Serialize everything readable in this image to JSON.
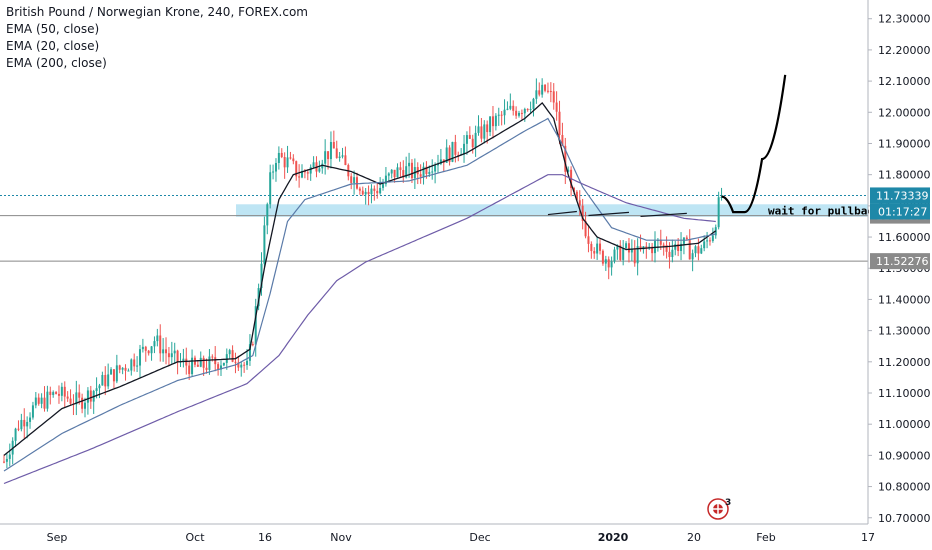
{
  "legend": {
    "title": "British Pound / Norwegian Krone, 240, FOREX.com",
    "indicators": [
      "EMA (50, close)",
      "EMA (20, close)",
      "EMA (200, close)"
    ]
  },
  "chart_data": {
    "type": "candlestick",
    "ylim": [
      10.68,
      12.36
    ],
    "y_ticks": [
      "12.30000",
      "12.20000",
      "12.10000",
      "12.00000",
      "11.90000",
      "11.80000",
      "11.70000",
      "11.60000",
      "11.50000",
      "11.40000",
      "11.30000",
      "11.20000",
      "11.10000",
      "11.00000",
      "10.90000",
      "10.80000",
      "10.70000"
    ],
    "x_ticks": [
      "Sep",
      "Oct",
      "16",
      "Nov",
      "Dec",
      "2020",
      "20",
      "Feb",
      "17"
    ],
    "bold_x_tick": "2020",
    "price_path": [
      [
        0,
        10.88
      ],
      [
        5,
        11.0
      ],
      [
        10,
        11.05
      ],
      [
        18,
        11.1
      ],
      [
        26,
        11.07
      ],
      [
        36,
        11.15
      ],
      [
        44,
        11.2
      ],
      [
        52,
        11.27
      ],
      [
        58,
        11.21
      ],
      [
        66,
        11.18
      ],
      [
        74,
        11.2
      ],
      [
        80,
        11.22
      ],
      [
        84,
        11.18
      ],
      [
        86,
        11.28
      ],
      [
        88,
        11.45
      ],
      [
        90,
        11.62
      ],
      [
        92,
        11.78
      ],
      [
        94,
        11.86
      ],
      [
        98,
        11.84
      ],
      [
        102,
        11.8
      ],
      [
        106,
        11.82
      ],
      [
        110,
        11.86
      ],
      [
        114,
        11.88
      ],
      [
        118,
        11.82
      ],
      [
        122,
        11.78
      ],
      [
        126,
        11.74
      ],
      [
        130,
        11.76
      ],
      [
        134,
        11.8
      ],
      [
        138,
        11.82
      ],
      [
        142,
        11.8
      ],
      [
        148,
        11.84
      ],
      [
        156,
        11.88
      ],
      [
        162,
        11.91
      ],
      [
        168,
        11.96
      ],
      [
        174,
        12.0
      ],
      [
        180,
        12.02
      ],
      [
        184,
        12.05
      ],
      [
        187,
        12.07
      ],
      [
        190,
        12.04
      ],
      [
        193,
        11.88
      ],
      [
        196,
        11.74
      ],
      [
        199,
        11.68
      ],
      [
        202,
        11.6
      ],
      [
        206,
        11.54
      ],
      [
        210,
        11.53
      ],
      [
        214,
        11.56
      ],
      [
        218,
        11.54
      ],
      [
        222,
        11.56
      ],
      [
        226,
        11.58
      ],
      [
        230,
        11.56
      ],
      [
        234,
        11.58
      ],
      [
        238,
        11.55
      ],
      [
        242,
        11.57
      ],
      [
        245,
        11.62
      ],
      [
        247,
        11.7
      ],
      [
        248,
        11.73
      ]
    ],
    "series": [
      {
        "name": "EMA (20, close)",
        "color": "#131722",
        "points": [
          [
            0,
            10.9
          ],
          [
            20,
            11.05
          ],
          [
            40,
            11.12
          ],
          [
            60,
            11.2
          ],
          [
            80,
            11.21
          ],
          [
            85,
            11.24
          ],
          [
            90,
            11.5
          ],
          [
            95,
            11.72
          ],
          [
            100,
            11.8
          ],
          [
            110,
            11.83
          ],
          [
            120,
            11.81
          ],
          [
            130,
            11.77
          ],
          [
            140,
            11.8
          ],
          [
            160,
            11.87
          ],
          [
            180,
            11.98
          ],
          [
            186,
            12.03
          ],
          [
            190,
            11.98
          ],
          [
            195,
            11.8
          ],
          [
            200,
            11.66
          ],
          [
            205,
            11.6
          ],
          [
            215,
            11.56
          ],
          [
            230,
            11.57
          ],
          [
            240,
            11.58
          ],
          [
            246,
            11.62
          ]
        ]
      },
      {
        "name": "EMA (50, close)",
        "color": "#5a7aa8",
        "points": [
          [
            0,
            10.85
          ],
          [
            20,
            10.97
          ],
          [
            40,
            11.06
          ],
          [
            60,
            11.14
          ],
          [
            80,
            11.19
          ],
          [
            86,
            11.22
          ],
          [
            92,
            11.42
          ],
          [
            98,
            11.65
          ],
          [
            104,
            11.72
          ],
          [
            120,
            11.77
          ],
          [
            140,
            11.78
          ],
          [
            160,
            11.83
          ],
          [
            180,
            11.94
          ],
          [
            188,
            11.98
          ],
          [
            194,
            11.88
          ],
          [
            200,
            11.76
          ],
          [
            210,
            11.63
          ],
          [
            222,
            11.59
          ],
          [
            236,
            11.59
          ],
          [
            246,
            11.61
          ]
        ]
      },
      {
        "name": "EMA (200, close)",
        "color": "#6e5ca8",
        "points": [
          [
            0,
            10.81
          ],
          [
            30,
            10.92
          ],
          [
            60,
            11.04
          ],
          [
            84,
            11.13
          ],
          [
            95,
            11.22
          ],
          [
            105,
            11.35
          ],
          [
            115,
            11.46
          ],
          [
            125,
            11.52
          ],
          [
            140,
            11.58
          ],
          [
            160,
            11.66
          ],
          [
            180,
            11.76
          ],
          [
            188,
            11.8
          ],
          [
            193,
            11.8
          ],
          [
            200,
            11.77
          ],
          [
            215,
            11.71
          ],
          [
            235,
            11.66
          ],
          [
            246,
            11.65
          ]
        ]
      }
    ],
    "horizontal_levels": [
      {
        "value": 11.73339,
        "label": "11.73339",
        "style": "dotted",
        "color": "#1e88a8"
      },
      {
        "value": 11.66876,
        "label": "11.66876",
        "style": "solid",
        "color": "#888888"
      },
      {
        "value": 11.52276,
        "label": "11.52276",
        "style": "solid",
        "color": "#888888"
      }
    ],
    "countdown_label": "01:17:27",
    "zone": {
      "from": 11.665,
      "to": 11.705,
      "color": "#b3e0f2"
    },
    "annotation": "wait for pullback",
    "projection_points": [
      [
        248,
        11.73
      ],
      [
        252,
        11.68
      ],
      [
        256,
        11.68
      ],
      [
        262,
        11.85
      ],
      [
        270,
        12.12
      ]
    ],
    "event_badge_count": "3"
  }
}
